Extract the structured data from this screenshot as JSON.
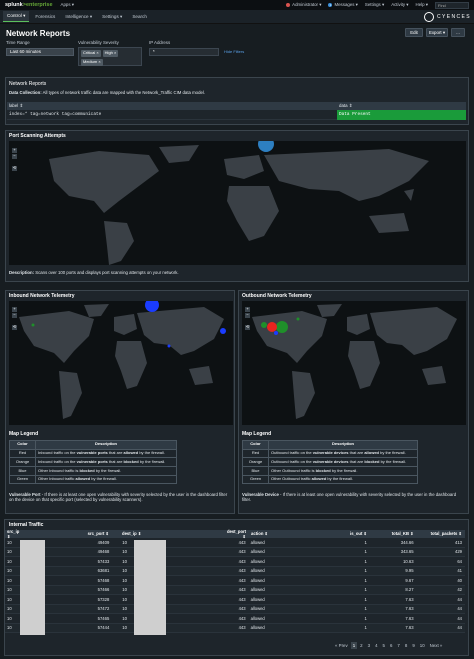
{
  "topbar": {
    "logo_a": "splunk",
    "logo_b": ">enterprise",
    "apps": "Apps ▾",
    "admin": "Administrator ▾",
    "messages": "Messages ▾",
    "messages_count": "1",
    "settings": "Settings ▾",
    "activity": "Activity ▾",
    "help": "Help ▾",
    "find": "Find",
    "admin_color": "#d9534f",
    "messages_color": "#3b8fd9"
  },
  "nav": {
    "items": [
      "Control ▾",
      "Forensics",
      "Intelligence ▾",
      "Settings ▾",
      "Search"
    ],
    "brand": "CYENCES"
  },
  "header": {
    "title": "Network Reports",
    "edit": "Edit",
    "export": "Export ▾",
    "more": "..."
  },
  "filters": {
    "time_range_label": "Time Range",
    "time_range_value": "Last 60 minutes",
    "vuln_label": "Vulnerability Severity",
    "vuln_chips": [
      "Critical ×",
      "High ×",
      "Medium ×"
    ],
    "ip_label": "IP Address",
    "ip_value": "*",
    "hide_filters": "Hide Filters"
  },
  "panel_reports": {
    "title": "Network Reports",
    "desc_bold": "Data Collection:",
    "desc": " All types of network traffic data are mapped with the Network_Traffic CIM data model.",
    "col_label": "label ⇕",
    "col_data": "data ⇕",
    "row_label": "index=* tag=network tag=communicate",
    "row_data": "Data Present",
    "data_color": "#1a9b3a"
  },
  "panel_port": {
    "title": "Port Scanning Attempts",
    "desc_bold": "Description:",
    "desc": " Scans over 100 ports and displays port scanning attempts on your network."
  },
  "panel_inbound": {
    "title": "Inbound Network Telemetry",
    "legend_title": "Map Legend",
    "legend_head": [
      "Color",
      "Description"
    ],
    "legend_rows": [
      {
        "color": "Red",
        "pre": "Inbound traffic on the ",
        "b1": "vulnerable ports",
        "mid": " that are ",
        "b2": "allowed",
        "post": " by the firewall."
      },
      {
        "color": "Orange",
        "pre": "Inbound traffic on the ",
        "b1": "vulnerable ports",
        "mid": " that are ",
        "b2": "blocked",
        "post": " by the firewall."
      },
      {
        "color": "Blue",
        "pre": "Other Inbound traffic is ",
        "b1": "blocked",
        "mid": "",
        "b2": "",
        "post": " by the firewall."
      },
      {
        "color": "Green",
        "pre": "Other Inbound traffic ",
        "b1": "allowed",
        "mid": "",
        "b2": "",
        "post": " by the firewall."
      }
    ],
    "note_bold": "Vulnerable Port",
    "note": " - If there is at least one open vulnerability with severity selected by the user in the dashboard filter on the device on that specific port (selected by vulnerability scanners)."
  },
  "panel_outbound": {
    "title": "Outbound Network Telemetry",
    "legend_title": "Map Legend",
    "legend_head": [
      "Color",
      "Description"
    ],
    "legend_rows": [
      {
        "color": "Red",
        "pre": "Outbound traffic on the ",
        "b1": "vulnerable devices",
        "mid": " that are ",
        "b2": "allowed",
        "post": " by the firewall."
      },
      {
        "color": "Orange",
        "pre": "Outbound traffic on the ",
        "b1": "vulnerable devices",
        "mid": " that are ",
        "b2": "blocked",
        "post": " by the firewall."
      },
      {
        "color": "Blue",
        "pre": "Other Outbound traffic is ",
        "b1": "blocked",
        "mid": "",
        "b2": "",
        "post": " by the firewall."
      },
      {
        "color": "Green",
        "pre": "Other Outbound traffic ",
        "b1": "allowed",
        "mid": "",
        "b2": "",
        "post": " by the firewall."
      }
    ],
    "note_bold": "Vulnerable Device",
    "note": " - If there is at least one open vulnerability with severity selected by the user in the dashboard filter."
  },
  "panel_traffic": {
    "title": "Internal Traffic",
    "headers": [
      "src_ip ⇕",
      "src_port ⇕",
      "dest_ip ⇕",
      "dest_port ⇕",
      "action ⇕",
      "is_out ⇕",
      "total_KB ⇕",
      "total_packets ⇕"
    ],
    "rows": [
      [
        "10",
        "49409",
        "10",
        "443",
        "allowed",
        "1",
        "344.66",
        "413"
      ],
      [
        "10",
        "49468",
        "10",
        "443",
        "allowed",
        "1",
        "343.65",
        "429"
      ],
      [
        "10",
        "57433",
        "10",
        "443",
        "allowed",
        "1",
        "10.63",
        "64"
      ],
      [
        "10",
        "63681",
        "10",
        "443",
        "allowed",
        "1",
        "9.95",
        "41"
      ],
      [
        "10",
        "57468",
        "10",
        "443",
        "allowed",
        "1",
        "9.67",
        "40"
      ],
      [
        "10",
        "57466",
        "10",
        "443",
        "allowed",
        "1",
        "8.27",
        "42"
      ],
      [
        "10",
        "57328",
        "10",
        "443",
        "allowed",
        "1",
        "7.63",
        "44"
      ],
      [
        "10",
        "57472",
        "10",
        "443",
        "allowed",
        "1",
        "7.63",
        "44"
      ],
      [
        "10",
        "57465",
        "10",
        "443",
        "allowed",
        "1",
        "7.63",
        "44"
      ],
      [
        "10",
        "57444",
        "10",
        "443",
        "allowed",
        "1",
        "7.63",
        "44"
      ]
    ],
    "pager_prev": "« Prev",
    "pages": [
      "1",
      "2",
      "3",
      "4",
      "5",
      "6",
      "7",
      "8",
      "9",
      "10"
    ],
    "pager_next": "Next »"
  },
  "colors": {
    "accent": "#5cc05c",
    "bubble_blue": "#1a3cff",
    "bubble_red": "#e8231f",
    "bubble_green": "#1f8f2a",
    "port_blue": "#2d7fc1"
  }
}
